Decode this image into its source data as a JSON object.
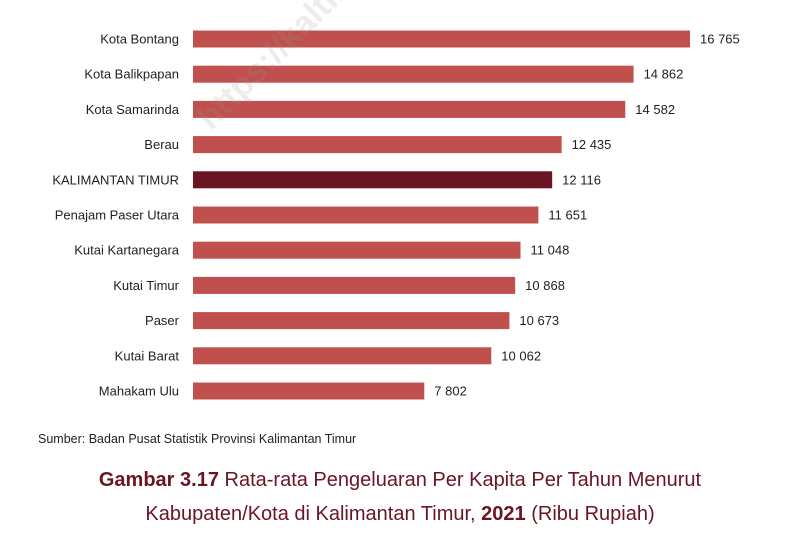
{
  "chart_data": {
    "type": "bar",
    "orientation": "horizontal",
    "categories": [
      "Kota Bontang",
      "Kota Balikpapan",
      "Kota Samarinda",
      "Berau",
      "KALIMANTAN TIMUR",
      "Penajam Paser Utara",
      "Kutai Kartanegara",
      "Kutai Timur",
      "Paser",
      "Kutai Barat",
      "Mahakam Ulu"
    ],
    "values": [
      16765,
      14862,
      14582,
      12435,
      12116,
      11651,
      11048,
      10868,
      10673,
      10062,
      7802
    ],
    "data_labels": [
      "16 765",
      "14 862",
      "14 582",
      "12 435",
      "12 116",
      "11 651",
      "11 048",
      "10 868",
      "10 673",
      "10 062",
      "7 802"
    ],
    "highlight": "KALIMANTAN TIMUR",
    "xlim": [
      0,
      16765
    ],
    "grid": false,
    "colors": {
      "bar": "#c0504d",
      "highlight": "#6b1424",
      "text": "#222222",
      "caption": "#6b1424"
    }
  },
  "watermark": "https://kaltim.",
  "source": "Sumber: Badan Pusat Statistik Provinsi Kalimantan Timur",
  "caption": {
    "line1_bold": "Gambar 3.17",
    "line1_rest": " Rata-rata Pengeluaran Per Kapita Per Tahun Menurut",
    "line2_start": "Kabupaten/Kota di Kalimantan Timur, ",
    "line2_bold": "2021",
    "line2_end": " (Ribu Rupiah)"
  }
}
